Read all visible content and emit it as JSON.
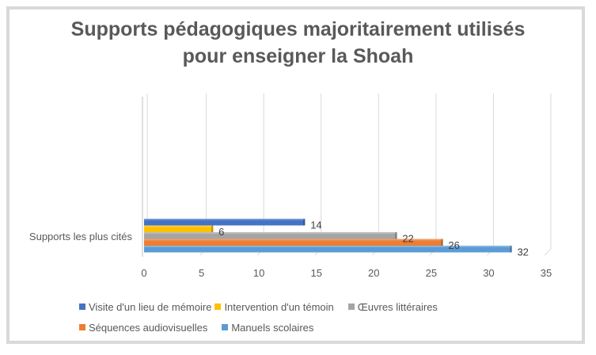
{
  "chart_data": {
    "type": "bar",
    "orientation": "horizontal",
    "title": "Supports pédagogiques majoritairement utilisés pour enseigner la Shoah",
    "title_lines": [
      "Supports pédagogiques majoritairement utilisés",
      "pour enseigner la Shoah"
    ],
    "categories": [
      "Supports les plus cités"
    ],
    "series": [
      {
        "name": "Visite d'un lieu de mémoire",
        "values": [
          14
        ],
        "color": "#4472c4"
      },
      {
        "name": "Intervention d'un témoin",
        "values": [
          6
        ],
        "color": "#ffc000"
      },
      {
        "name": "Œuvres littéraires",
        "values": [
          22
        ],
        "color": "#a5a5a5"
      },
      {
        "name": "Séquences audiovisuelles",
        "values": [
          26
        ],
        "color": "#ed7d31"
      },
      {
        "name": "Manuels scolaires",
        "values": [
          32
        ],
        "color": "#5b9bd5"
      }
    ],
    "xlim": [
      0,
      35
    ],
    "xticks": [
      0,
      5,
      10,
      15,
      20,
      25,
      30,
      35
    ],
    "xlabel": "",
    "ylabel": "",
    "grid": true,
    "legend_position": "bottom",
    "data_labels": true
  }
}
